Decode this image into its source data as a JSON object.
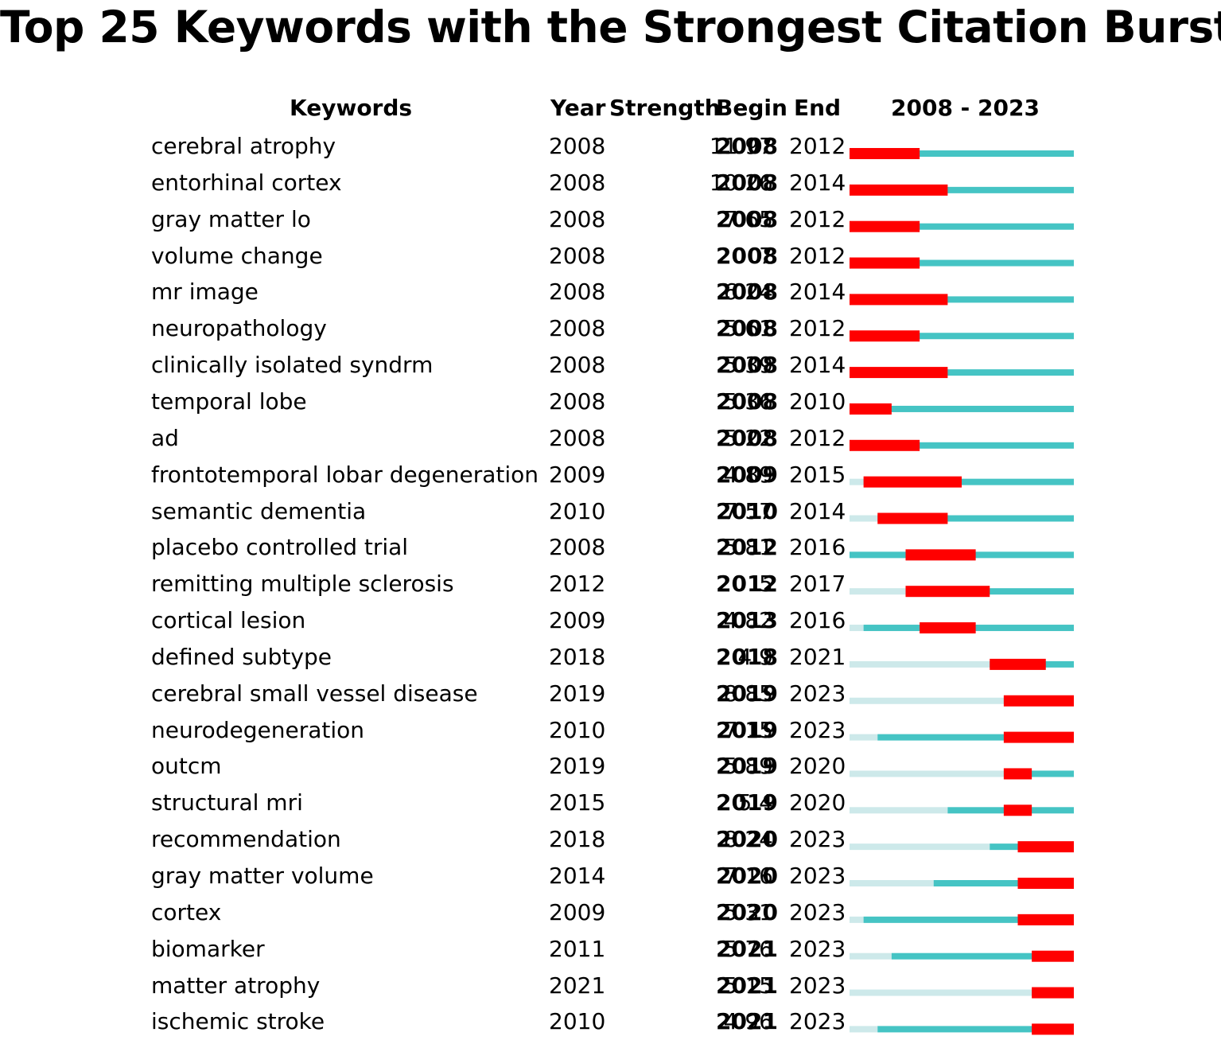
{
  "title": "Top 25 Keywords with the Strongest Citation Bursts",
  "headers": {
    "keywords": "Keywords",
    "year": "Year",
    "strength": "Strength",
    "begin": "Begin",
    "end": "End",
    "range": "2008 - 2023"
  },
  "colors": {
    "burst": "#ff0000",
    "active": "#45c4c4",
    "before": "#cde9ea"
  },
  "chart_data": {
    "type": "table",
    "range": [
      2008,
      2023
    ],
    "rows": [
      {
        "keyword": "cerebral atrophy",
        "year": "2008",
        "strength": "11.97",
        "begin": "2008",
        "end": "2012"
      },
      {
        "keyword": "entorhinal cortex",
        "year": "2008",
        "strength": "10.26",
        "begin": "2008",
        "end": "2014"
      },
      {
        "keyword": "gray matter lo",
        "year": "2008",
        "strength": "7.65",
        "begin": "2008",
        "end": "2012"
      },
      {
        "keyword": "volume change",
        "year": "2008",
        "strength": "7",
        "begin": "2008",
        "end": "2012"
      },
      {
        "keyword": "mr image",
        "year": "2008",
        "strength": "6.24",
        "begin": "2008",
        "end": "2014"
      },
      {
        "keyword": "neuropathology",
        "year": "2008",
        "strength": "5.61",
        "begin": "2008",
        "end": "2012"
      },
      {
        "keyword": "clinically isolated syndrm",
        "year": "2008",
        "strength": "5.39",
        "begin": "2008",
        "end": "2014"
      },
      {
        "keyword": "temporal lobe",
        "year": "2008",
        "strength": "5.36",
        "begin": "2008",
        "end": "2010"
      },
      {
        "keyword": "ad",
        "year": "2008",
        "strength": "5.22",
        "begin": "2008",
        "end": "2012"
      },
      {
        "keyword": "frontotemporal lobar degeneration",
        "year": "2009",
        "strength": "4.89",
        "begin": "2009",
        "end": "2015"
      },
      {
        "keyword": "semantic dementia",
        "year": "2010",
        "strength": "7.57",
        "begin": "2010",
        "end": "2014"
      },
      {
        "keyword": "placebo controlled trial",
        "year": "2008",
        "strength": "5.81",
        "begin": "2012",
        "end": "2016"
      },
      {
        "keyword": "remitting multiple sclerosis",
        "year": "2012",
        "strength": "5",
        "begin": "2012",
        "end": "2017"
      },
      {
        "keyword": "cortical lesion",
        "year": "2009",
        "strength": "4.82",
        "begin": "2013",
        "end": "2016"
      },
      {
        "keyword": "defined subtype",
        "year": "2018",
        "strength": "4.9",
        "begin": "2018",
        "end": "2021"
      },
      {
        "keyword": "cerebral small vessel disease",
        "year": "2019",
        "strength": "8.85",
        "begin": "2019",
        "end": "2023"
      },
      {
        "keyword": "neurodegeneration",
        "year": "2010",
        "strength": "7.15",
        "begin": "2019",
        "end": "2023"
      },
      {
        "keyword": "outcm",
        "year": "2019",
        "strength": "5.89",
        "begin": "2019",
        "end": "2020"
      },
      {
        "keyword": "structural mri",
        "year": "2015",
        "strength": "5.4",
        "begin": "2019",
        "end": "2020"
      },
      {
        "keyword": "recommendation",
        "year": "2018",
        "strength": "8.24",
        "begin": "2020",
        "end": "2023"
      },
      {
        "keyword": "gray matter volume",
        "year": "2014",
        "strength": "7.16",
        "begin": "2020",
        "end": "2023"
      },
      {
        "keyword": "cortex",
        "year": "2009",
        "strength": "5.31",
        "begin": "2020",
        "end": "2023"
      },
      {
        "keyword": "biomarker",
        "year": "2011",
        "strength": "5.76",
        "begin": "2021",
        "end": "2023"
      },
      {
        "keyword": "matter atrophy",
        "year": "2021",
        "strength": "5.15",
        "begin": "2021",
        "end": "2023"
      },
      {
        "keyword": "ischemic stroke",
        "year": "2010",
        "strength": "4.96",
        "begin": "2021",
        "end": "2023"
      }
    ]
  }
}
